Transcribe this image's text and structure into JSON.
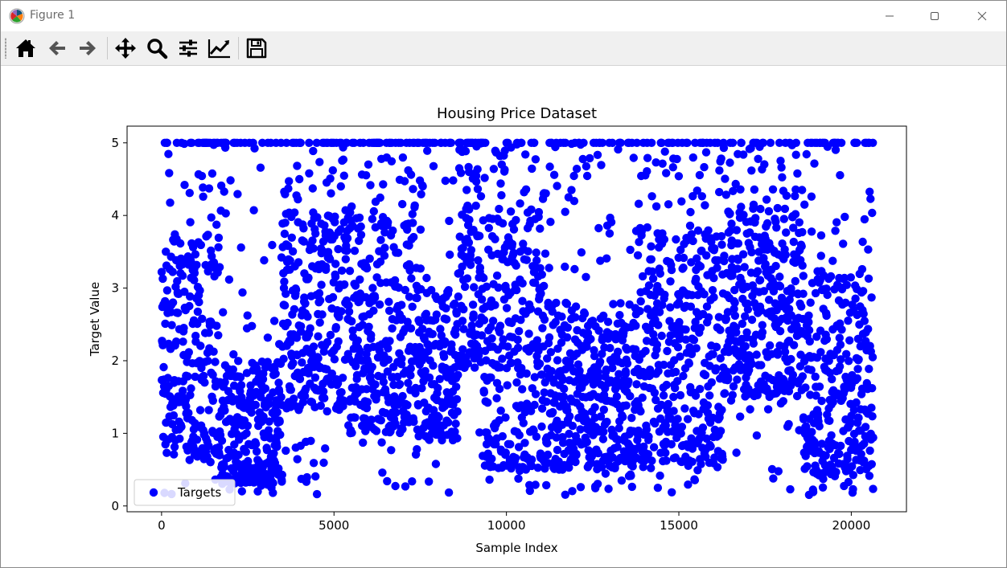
{
  "window": {
    "title": "Figure 1",
    "controls": {
      "minimize": "minimize",
      "maximize": "maximize",
      "close": "close"
    }
  },
  "toolbar": {
    "items": [
      {
        "name": "home",
        "icon": "home-icon"
      },
      {
        "name": "back",
        "icon": "arrow-left-icon"
      },
      {
        "name": "forward",
        "icon": "arrow-right-icon"
      },
      {
        "name": "pan",
        "icon": "move-icon"
      },
      {
        "name": "zoom",
        "icon": "magnifier-icon"
      },
      {
        "name": "configure-subplots",
        "icon": "sliders-icon"
      },
      {
        "name": "edit-axes",
        "icon": "line-chart-icon"
      },
      {
        "name": "save",
        "icon": "floppy-disk-icon"
      }
    ]
  },
  "chart_data": {
    "type": "scatter",
    "title": "Housing Price Dataset",
    "xlabel": "Sample Index",
    "ylabel": "Target Value",
    "xlim": [
      -1000,
      21600
    ],
    "ylim": [
      -0.08,
      5.23
    ],
    "xticks": [
      0,
      5000,
      10000,
      15000,
      20000
    ],
    "xtick_labels": [
      "0",
      "5000",
      "10000",
      "15000",
      "20000"
    ],
    "yticks": [
      0,
      1,
      2,
      3,
      4,
      5
    ],
    "ytick_labels": [
      "0",
      "1",
      "2",
      "3",
      "4",
      "5"
    ],
    "grid": false,
    "legend": {
      "placement": "lower-left",
      "entries": [
        "Targets"
      ]
    },
    "series": [
      {
        "name": "Targets",
        "color": "#0000ff",
        "n_points": 20640,
        "x_range": [
          0,
          20639
        ],
        "y_range": [
          0.15,
          5.0
        ],
        "y_cap": 5.0,
        "density_profile": [
          {
            "x": [
              0,
              1700
            ],
            "y_low": 0.6,
            "y_high": 3.7,
            "y_max": 5.0
          },
          {
            "x": [
              1700,
              3500
            ],
            "y_low": 0.3,
            "y_high": 2.0,
            "y_max": 5.0
          },
          {
            "x": [
              3500,
              5300
            ],
            "y_low": 1.3,
            "y_high": 4.0,
            "y_max": 5.0
          },
          {
            "x": [
              5300,
              7400
            ],
            "y_low": 1.0,
            "y_high": 4.0,
            "y_max": 5.0
          },
          {
            "x": [
              7400,
              8600
            ],
            "y_low": 0.9,
            "y_high": 3.0,
            "y_max": 5.0
          },
          {
            "x": [
              8600,
              9300
            ],
            "y_low": 1.9,
            "y_high": 5.0,
            "y_max": 5.0
          },
          {
            "x": [
              9300,
              11200
            ],
            "y_low": 0.5,
            "y_high": 4.0,
            "y_max": 5.0
          },
          {
            "x": [
              11200,
              13800
            ],
            "y_low": 0.5,
            "y_high": 2.8,
            "y_max": 5.0
          },
          {
            "x": [
              13800,
              16300
            ],
            "y_low": 0.6,
            "y_high": 3.8,
            "y_max": 5.0
          },
          {
            "x": [
              16300,
              18600
            ],
            "y_low": 1.5,
            "y_high": 4.1,
            "y_max": 5.0
          },
          {
            "x": [
              18600,
              20640
            ],
            "y_low": 0.4,
            "y_high": 3.2,
            "y_max": 5.0
          }
        ]
      }
    ]
  }
}
